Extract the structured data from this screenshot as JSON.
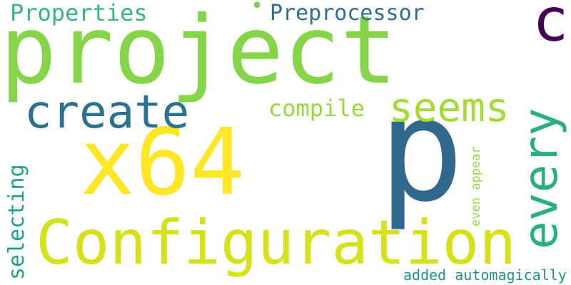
{
  "words": [
    {
      "id": "project",
      "text": "project",
      "color": "#86d549"
    },
    {
      "id": "x64",
      "text": "x64",
      "color": "#fde725"
    },
    {
      "id": "p",
      "text": "p",
      "color": "#31688e"
    },
    {
      "id": "configuration",
      "text": "Configuration",
      "color": "#d5e21a"
    },
    {
      "id": "c",
      "text": "c",
      "color": "#440154"
    },
    {
      "id": "create",
      "text": "create",
      "color": "#2c728e"
    },
    {
      "id": "seems",
      "text": "seems",
      "color": "#a5db36"
    },
    {
      "id": "every",
      "text": "every",
      "color": "#2ab07f"
    },
    {
      "id": "properties",
      "text": "Properties",
      "color": "#35b779"
    },
    {
      "id": "preprocessor",
      "text": "Preprocessor",
      "color": "#2f6c8e"
    },
    {
      "id": "compile",
      "text": "compile",
      "color": "#95d840"
    },
    {
      "id": "selecting",
      "text": "selecting",
      "color": "#1fa088"
    },
    {
      "id": "even-appear",
      "text": "even appear",
      "color": "#9bd93c"
    },
    {
      "id": "added-automagically",
      "text": "added automagically",
      "color": "#20928c"
    },
    {
      "id": "dot",
      "text": "•",
      "color": "#7ad151"
    }
  ]
}
